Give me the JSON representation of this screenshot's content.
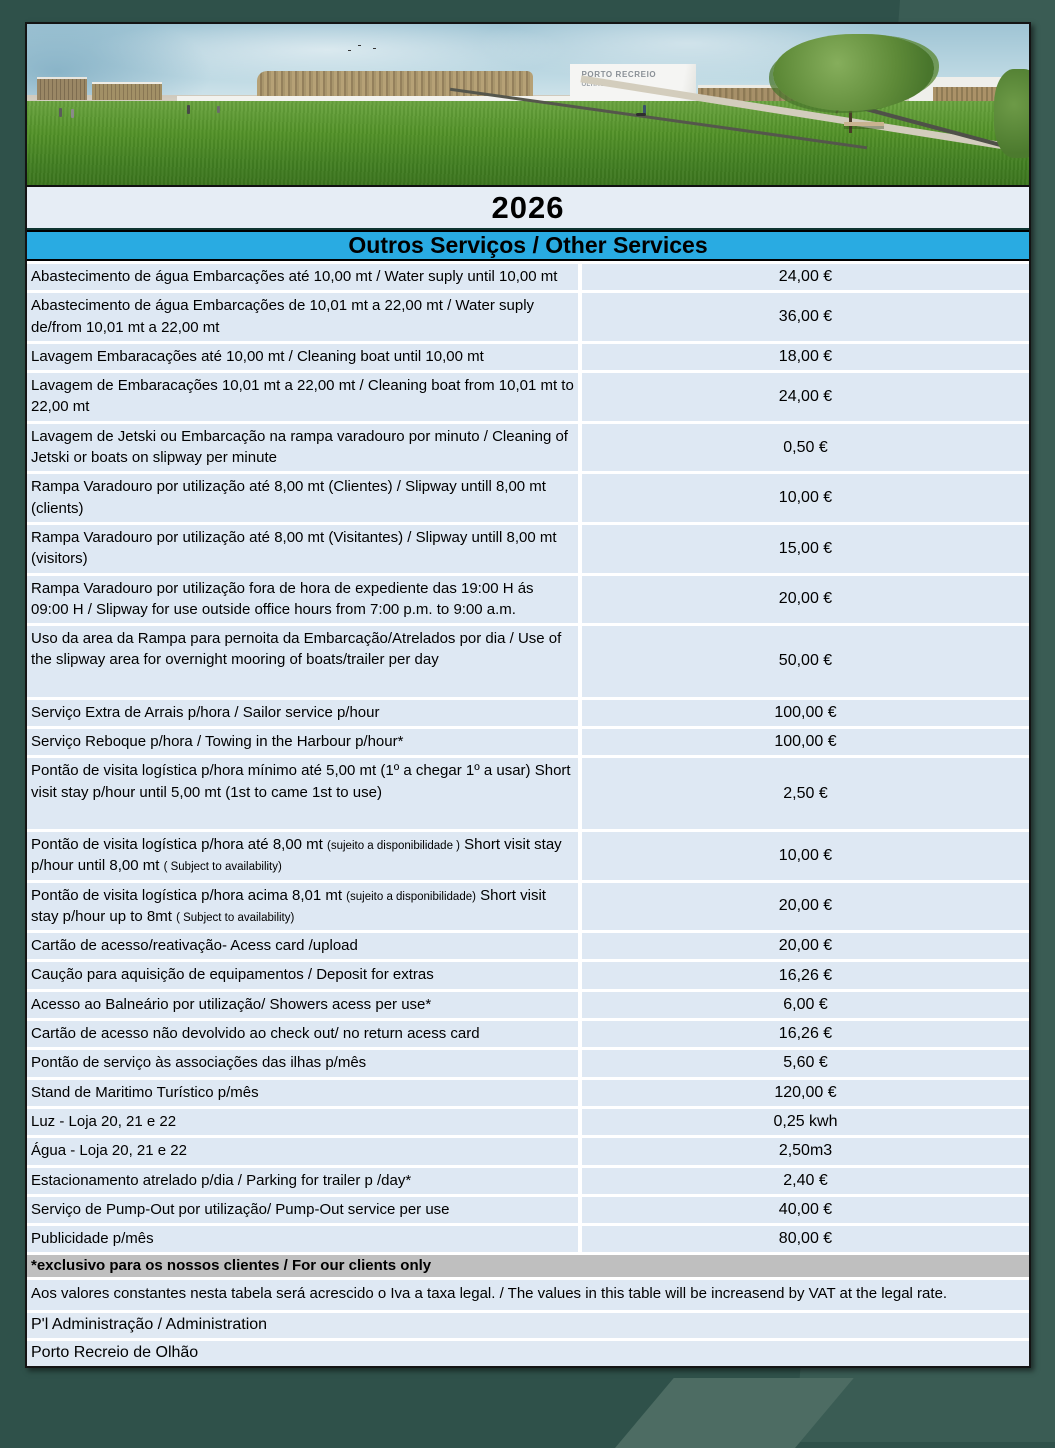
{
  "page": {
    "year": "2026"
  },
  "photo": {
    "description": "architectural rendering of marina buildings with lawn",
    "sign_line1": "PORTO RECREIO",
    "sign_line2": "OLHÃO"
  },
  "header": {
    "title": "Outros Serviços / Other Services"
  },
  "colors": {
    "header_blue": "#29ABE2",
    "row_light_blue": "#DEE8F3",
    "note_gray": "#BFBFBF",
    "background_teal": "#2F514A",
    "background_teal_light": "#4D6C63"
  },
  "table": {
    "rows": [
      {
        "desc": "Abastecimento de água Embarcações até 10,00 mt / Water suply until 10,00 mt",
        "price": "24,00 €"
      },
      {
        "desc": "Abastecimento de água Embarcações de 10,01 mt a 22,00 mt / Water suply de/from 10,01 mt a 22,00 mt",
        "price": "36,00 €"
      },
      {
        "desc": "Lavagem Embaracações até 10,00 mt / Cleaning boat until 10,00 mt",
        "price": "18,00 €"
      },
      {
        "desc": "Lavagem de Embaracações 10,01 mt a 22,00 mt / Cleaning boat from 10,01 mt to 22,00 mt",
        "price": "24,00 €"
      },
      {
        "desc": "Lavagem de Jetski ou Embarcação na rampa varadouro por minuto / Cleaning of Jetski or boats on slipway per minute",
        "price": "0,50 €"
      },
      {
        "desc": "Rampa Varadouro por utilização até 8,00 mt (Clientes) /  Slipway untill 8,00 mt (clients)",
        "price": "10,00 €"
      },
      {
        "desc": "Rampa Varadouro por utilização até 8,00 mt  (Visitantes) / Slipway untill 8,00 mt  (visitors)",
        "price": "15,00 €"
      },
      {
        "desc": "Rampa Varadouro por utilização fora de hora de expediente das 19:00 H ás 09:00 H / Slipway for use outside office hours from 7:00 p.m. to 9:00 a.m.",
        "price": "20,00 €"
      },
      {
        "desc": "Uso da area da Rampa para pernoita da Embarcação/Atrelados por dia / Use of the slipway area for overnight mooring of boats/trailer per day",
        "price": "50,00 €",
        "extra": 1
      },
      {
        "desc": "Serviço Extra de Arrais p/hora / Sailor service p/hour",
        "price": "100,00 €"
      },
      {
        "desc": "Serviço Reboque  p/hora / Towing in the Harbour p/hour*",
        "price": "100,00 €"
      },
      {
        "desc": "Pontão de visita logística p/hora mínimo até 5,00 mt (1º a chegar 1º a usar)  Short visit stay p/hour until 5,00 mt (1st to came 1st to use)",
        "price": "2,50 €",
        "extra": 1
      },
      {
        "parts": [
          {
            "t": "Pontão de visita logística p/hora até 8,00 mt "
          },
          {
            "t": "(sujeito a disponibilidade )",
            "small": true
          },
          {
            "t": " Short visit stay p/hour until 8,00 mt "
          },
          {
            "t": "( Subject to availability)",
            "small": true
          }
        ],
        "price": "10,00 €"
      },
      {
        "parts": [
          {
            "t": "Pontão de visita logística p/hora acima 8,01 mt "
          },
          {
            "t": "(sujeito a  disponibilidade)",
            "small": true
          },
          {
            "t": " Short visit stay p/hour up to 8mt "
          },
          {
            "t": "( Subject to availability)",
            "small": true
          }
        ],
        "price": "20,00 €"
      },
      {
        "desc": "Cartão de acesso/reativação- Acess card /upload",
        "price": "20,00 €"
      },
      {
        "desc": "Caução para aquisição de  equipamentos / Deposit for extras",
        "price": "16,26 €"
      },
      {
        "desc": "Acesso ao Balneário por utilização/ Showers acess per use*",
        "price": "6,00 €"
      },
      {
        "desc": "Cartão de acesso não devolvido ao check out/ no return acess card",
        "price": "16,26 €"
      },
      {
        "desc": "Pontão de serviço às associações das ilhas p/mês",
        "price": "5,60 €"
      },
      {
        "desc": "Stand de Maritimo Turístico p/mês",
        "price": "120,00 €"
      },
      {
        "desc": "Luz -  Loja 20, 21 e 22",
        "price": "0,25 kwh"
      },
      {
        "desc": "Água - Loja 20, 21 e 22",
        "price": "2,50m3"
      },
      {
        "desc": "Estacionamento atrelado p/dia / Parking for trailer p /day*",
        "price": "2,40 €"
      },
      {
        "desc": "Serviço de  Pump-Out por utilização/ Pump-Out service per use",
        "price": "40,00 €"
      },
      {
        "desc": "Publicidade p/mês",
        "price": "80,00 €"
      }
    ]
  },
  "notes": {
    "exclusive": "*exclusivo para os nossos clientes / For our clients only",
    "vat": "Aos valores constantes nesta tabela será acrescido o Iva a taxa legal. / The values in this table will be increasend by VAT at the legal rate."
  },
  "footer": {
    "line1": "P'l Administração / Administration",
    "line2": "Porto Recreio de Olhão"
  }
}
